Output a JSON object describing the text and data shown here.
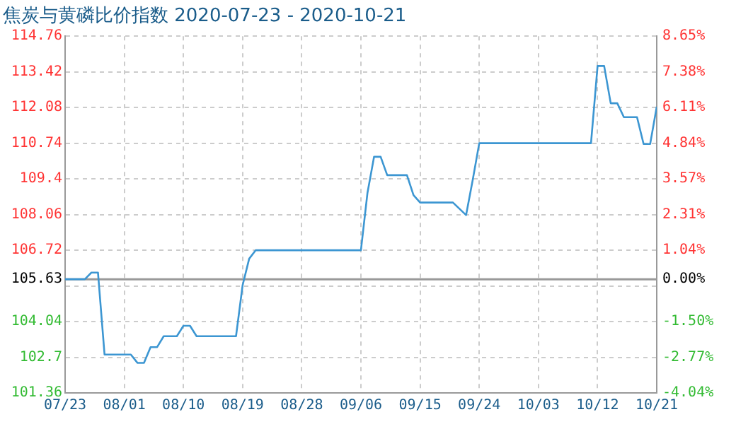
{
  "chart_data": {
    "type": "line",
    "title": "焦炭与黄磷比价指数 2020-07-23 - 2020-10-21",
    "x": [
      "2020-07-23",
      "2020-07-26",
      "2020-07-27",
      "2020-07-28",
      "2020-07-29",
      "2020-08-02",
      "2020-08-03",
      "2020-08-04",
      "2020-08-05",
      "2020-08-06",
      "2020-08-07",
      "2020-08-09",
      "2020-08-10",
      "2020-08-11",
      "2020-08-12",
      "2020-08-18",
      "2020-08-19",
      "2020-08-20",
      "2020-08-21",
      "2020-09-06",
      "2020-09-07",
      "2020-09-08",
      "2020-09-09",
      "2020-09-10",
      "2020-09-13",
      "2020-09-14",
      "2020-09-15",
      "2020-09-20",
      "2020-09-22",
      "2020-09-23",
      "2020-09-24",
      "2020-10-11",
      "2020-10-12",
      "2020-10-13",
      "2020-10-14",
      "2020-10-15",
      "2020-10-16",
      "2020-10-18",
      "2020-10-19",
      "2020-10-20",
      "2020-10-21"
    ],
    "series": [
      {
        "color": "#3c96d2",
        "values": [
          105.63,
          105.63,
          105.88,
          105.88,
          102.8,
          102.8,
          102.49,
          102.49,
          103.08,
          103.08,
          103.49,
          103.49,
          103.88,
          103.88,
          103.49,
          103.49,
          105.4,
          106.4,
          106.72,
          106.72,
          108.88,
          110.23,
          110.23,
          109.54,
          109.54,
          108.79,
          108.51,
          108.51,
          108.04,
          109.35,
          110.74,
          110.74,
          113.64,
          113.64,
          112.24,
          112.24,
          111.72,
          111.72,
          110.71,
          110.71,
          112.11
        ]
      }
    ],
    "xlim": [
      "2020-07-23",
      "2020-10-21"
    ],
    "xticks": [
      {
        "value": "2020-07-23",
        "label": "07/23"
      },
      {
        "value": "2020-08-01",
        "label": "08/01"
      },
      {
        "value": "2020-08-10",
        "label": "08/10"
      },
      {
        "value": "2020-08-19",
        "label": "08/19"
      },
      {
        "value": "2020-08-28",
        "label": "08/28"
      },
      {
        "value": "2020-09-06",
        "label": "09/06"
      },
      {
        "value": "2020-09-15",
        "label": "09/15"
      },
      {
        "value": "2020-09-24",
        "label": "09/24"
      },
      {
        "value": "2020-10-03",
        "label": "10/03"
      },
      {
        "value": "2020-10-12",
        "label": "10/12"
      },
      {
        "value": "2020-10-21",
        "label": "10/21"
      }
    ],
    "ylim": [
      101.36,
      114.76
    ],
    "yticks": [
      101.36,
      102.7,
      104.04,
      {
        "value": 105.38,
        "label": null
      },
      105.63,
      106.72,
      108.06,
      109.4,
      110.74,
      112.08,
      113.42,
      114.76
    ],
    "y2lim": [
      -4.04,
      8.65
    ],
    "y2ticks": [
      {
        "value": -4.04,
        "label": "-4.04%"
      },
      {
        "value": -2.77,
        "label": "-2.77%"
      },
      {
        "value": -1.5,
        "label": "-1.50%"
      },
      {
        "value": -0.24,
        "label": null
      },
      {
        "value": 0,
        "label": "0.00%"
      },
      {
        "value": 1.04,
        "label": "1.04%"
      },
      {
        "value": 2.31,
        "label": "2.31%"
      },
      {
        "value": 3.57,
        "label": "3.57%"
      },
      {
        "value": 4.84,
        "label": "4.84%"
      },
      {
        "value": 6.11,
        "label": "6.11%"
      },
      {
        "value": 7.38,
        "label": "7.38%"
      },
      {
        "value": 8.65,
        "label": "8.65%"
      }
    ],
    "ref_lines": [
      {
        "axis": "y",
        "value": 105.63,
        "color": "#999999"
      }
    ],
    "grid": true,
    "legend": false,
    "marker": "none",
    "line_style": "solid"
  }
}
